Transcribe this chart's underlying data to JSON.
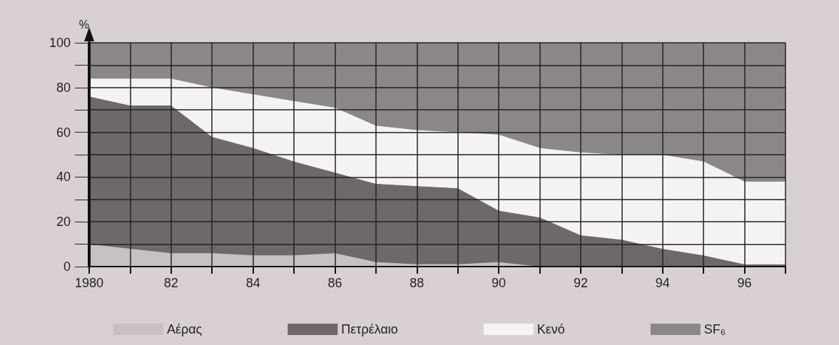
{
  "chart_data": {
    "type": "area",
    "stacked": true,
    "ylabel": "%",
    "x": [
      1980,
      1981,
      1982,
      1983,
      1984,
      1985,
      1986,
      1987,
      1988,
      1989,
      1990,
      1991,
      1992,
      1993,
      1994,
      1995,
      1996,
      1997
    ],
    "xlim": [
      1980,
      1997
    ],
    "xticks": [
      {
        "value": 1980,
        "label": "1980"
      },
      {
        "value": 1981,
        "label": null
      },
      {
        "value": 1982,
        "label": "82"
      },
      {
        "value": 1983,
        "label": null
      },
      {
        "value": 1984,
        "label": "84"
      },
      {
        "value": 1985,
        "label": null
      },
      {
        "value": 1986,
        "label": "86"
      },
      {
        "value": 1987,
        "label": null
      },
      {
        "value": 1988,
        "label": "88"
      },
      {
        "value": 1989,
        "label": null
      },
      {
        "value": 1990,
        "label": "90"
      },
      {
        "value": 1991,
        "label": null
      },
      {
        "value": 1992,
        "label": "92"
      },
      {
        "value": 1993,
        "label": null
      },
      {
        "value": 1994,
        "label": "94"
      },
      {
        "value": 1995,
        "label": null
      },
      {
        "value": 1996,
        "label": "96"
      },
      {
        "value": 1997,
        "label": null
      }
    ],
    "ylim": [
      0,
      100
    ],
    "yticks": [
      0,
      {
        "value": 10,
        "label": null
      },
      20,
      {
        "value": 30,
        "label": null
      },
      40,
      {
        "value": 50,
        "label": null
      },
      60,
      {
        "value": 70,
        "label": null
      },
      80,
      {
        "value": 90,
        "label": null
      },
      100
    ],
    "grid": true,
    "legend": "bottom",
    "series": [
      {
        "name": "Αέρας",
        "color": "#c9c1c1",
        "values": [
          10,
          8,
          6,
          6,
          5,
          5,
          6,
          2,
          1,
          1,
          2,
          0,
          0,
          0,
          0,
          0,
          0,
          0
        ]
      },
      {
        "name": "Πετρέλαιο",
        "color": "#6e6868",
        "values": [
          66,
          64,
          66,
          52,
          48,
          42,
          36,
          35,
          35,
          34,
          23,
          22,
          14,
          12,
          8,
          5,
          1,
          1
        ]
      },
      {
        "name": "Κενό",
        "color": "#f4f2f2",
        "values": [
          8,
          12,
          12,
          22,
          24,
          27,
          29,
          26,
          25,
          25,
          34,
          31,
          37,
          38,
          42,
          42,
          37,
          37
        ]
      },
      {
        "name": "SF₆",
        "color": "#8c8787",
        "values": [
          16,
          16,
          16,
          20,
          23,
          26,
          29,
          37,
          39,
          40,
          41,
          47,
          49,
          50,
          50,
          53,
          62,
          62
        ]
      }
    ]
  }
}
